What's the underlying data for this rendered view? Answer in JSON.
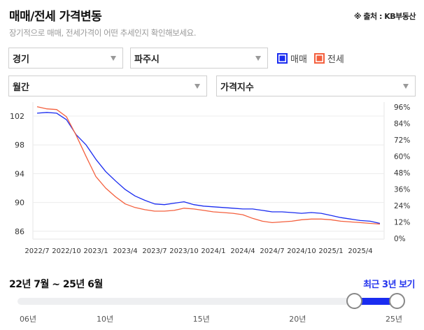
{
  "header": {
    "title": "매매/전세 가격변동",
    "source": "※ 출처 : KB부동산",
    "subtitle": "장기적으로 매매, 전세가격이 어떤 추세인지 확인해보세요."
  },
  "filters": {
    "region": "경기",
    "city": "파주시",
    "period": "월간",
    "metric": "가격지수"
  },
  "legend": [
    {
      "label": "매매",
      "color": "#1a2cf0"
    },
    {
      "label": "전세",
      "color": "#f4603e"
    }
  ],
  "range": {
    "label": "22년 7월 ~ 25년 6월",
    "recent_link": "최근 3년 보기",
    "ticks": [
      "06년",
      "10년",
      "15년",
      "20년",
      "25년"
    ],
    "start_year": 2006,
    "end_year": 2025,
    "selected_start": 2022.5,
    "selected_end": 2025.5
  },
  "chart_data": {
    "type": "line",
    "title": "매매/전세 가격변동",
    "xlabel": "",
    "ylabel": "가격지수",
    "x": [
      "2022/7",
      "2022/8",
      "2022/9",
      "2022/10",
      "2022/11",
      "2022/12",
      "2023/1",
      "2023/2",
      "2023/3",
      "2023/4",
      "2023/5",
      "2023/6",
      "2023/7",
      "2023/8",
      "2023/9",
      "2023/10",
      "2023/11",
      "2023/12",
      "2024/1",
      "2024/2",
      "2024/3",
      "2024/4",
      "2024/5",
      "2024/6",
      "2024/7",
      "2024/8",
      "2024/9",
      "2024/10",
      "2024/11",
      "2024/12",
      "2025/1",
      "2025/2",
      "2025/3",
      "2025/4",
      "2025/5",
      "2025/6"
    ],
    "x_tick_labels": [
      "2022/7",
      "2022/10",
      "2023/1",
      "2023/4",
      "2023/7",
      "2023/10",
      "2024/1",
      "2024/4",
      "2024/7",
      "2024/10",
      "2025/1",
      "2025/4"
    ],
    "series": [
      {
        "name": "매매",
        "color": "#1a2cf0",
        "values": [
          102.4,
          102.5,
          102.4,
          101.5,
          99.4,
          98.0,
          96.0,
          94.3,
          93.0,
          91.8,
          90.9,
          90.3,
          89.8,
          89.7,
          89.9,
          90.1,
          89.7,
          89.5,
          89.4,
          89.3,
          89.2,
          89.1,
          89.1,
          88.9,
          88.7,
          88.7,
          88.6,
          88.5,
          88.6,
          88.5,
          88.2,
          87.9,
          87.7,
          87.5,
          87.4,
          87.1
        ]
      },
      {
        "name": "전세",
        "color": "#f4603e",
        "values": [
          103.3,
          103.0,
          102.9,
          101.9,
          99.3,
          96.4,
          93.6,
          92.0,
          90.8,
          89.8,
          89.3,
          89.0,
          88.8,
          88.8,
          88.9,
          89.2,
          89.1,
          88.9,
          88.7,
          88.6,
          88.5,
          88.3,
          87.8,
          87.4,
          87.2,
          87.3,
          87.4,
          87.6,
          87.7,
          87.7,
          87.6,
          87.4,
          87.3,
          87.2,
          87.1,
          87.0
        ]
      }
    ],
    "y_ticks": [
      86,
      90,
      94,
      98,
      102
    ],
    "ylim": [
      85,
      104
    ],
    "y2_ticks": [
      "0%",
      "12%",
      "24%",
      "36%",
      "48%",
      "60%",
      "72%",
      "84%",
      "96%"
    ],
    "grid": true,
    "legend_position": "top-right"
  }
}
